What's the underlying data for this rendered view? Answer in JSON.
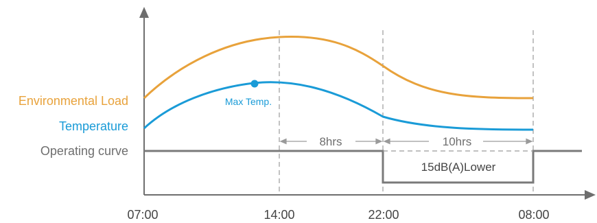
{
  "series": {
    "environmental_load": {
      "label": "Environmental Load",
      "color": "#E8A23B"
    },
    "temperature": {
      "label": "Temperature",
      "color": "#1A9BD7"
    },
    "operating_curve": {
      "label": "Operating curve",
      "color": "#7A7A7A"
    }
  },
  "annotations": {
    "max_temp": "Max Temp.",
    "span_day": "8hrs",
    "span_night": "10hrs",
    "night_mode": "15dB(A)Lower"
  },
  "x_ticks": [
    "07:00",
    "14:00",
    "22:00",
    "08:00"
  ],
  "colors": {
    "axis": "#6E6E6E",
    "guide": "#9A9A9A",
    "text_gray": "#6E6E6E"
  }
}
